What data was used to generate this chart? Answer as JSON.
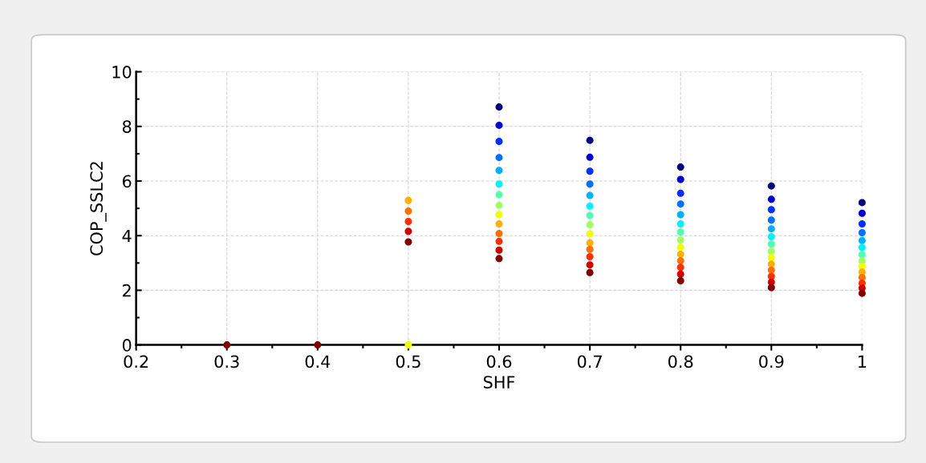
{
  "chart_data": {
    "type": "scatter",
    "xlabel": "SHF",
    "ylabel": "COP_SSLC2",
    "xlim": [
      0.2,
      1
    ],
    "ylim": [
      0,
      10
    ],
    "xticks": [
      0.2,
      0.3,
      0.4,
      0.5,
      0.6,
      0.7,
      0.8,
      0.9,
      1
    ],
    "yticks": [
      0,
      2,
      4,
      6,
      8,
      10
    ],
    "grid": true,
    "marker": "circle",
    "legend": false,
    "series": [
      {
        "x": [
          0.3,
          0.4,
          0.5,
          0.5,
          0.5,
          0.5,
          0.5,
          0.5
        ],
        "values": [
          0,
          0,
          0,
          5.29,
          4.9,
          4.52,
          4.16,
          3.77
        ],
        "colors": [
          "#800000",
          "#800000",
          "#f0ff00",
          "#ffb000",
          "#ff7000",
          "#ff3000",
          "#d00000",
          "#800000"
        ]
      },
      {
        "x": [
          0.6,
          0.6,
          0.6,
          0.6,
          0.6,
          0.6,
          0.6,
          0.6,
          0.6,
          0.6,
          0.6,
          0.6,
          0.6,
          0.6
        ],
        "values": [
          8.71,
          8.04,
          7.45,
          6.86,
          6.39,
          5.89,
          5.5,
          5.11,
          4.77,
          4.43,
          4.08,
          3.79,
          3.47,
          3.16
        ],
        "colors": [
          "#00007f",
          "#0000d0",
          "#0030ff",
          "#0070ff",
          "#00b0ff",
          "#00f0ff",
          "#50ffb0",
          "#a0ff60",
          "#f0ff00",
          "#ffb000",
          "#ff7000",
          "#ff3000",
          "#d00000",
          "#800000"
        ]
      },
      {
        "x": [
          0.7,
          0.7,
          0.7,
          0.7,
          0.7,
          0.7,
          0.7,
          0.7,
          0.7,
          0.7,
          0.7,
          0.7,
          0.7,
          0.7
        ],
        "values": [
          7.49,
          6.87,
          6.36,
          5.89,
          5.47,
          5.08,
          4.74,
          4.4,
          4.07,
          3.74,
          3.5,
          3.23,
          2.93,
          2.65
        ],
        "colors": [
          "#00007f",
          "#0000d0",
          "#0030ff",
          "#0070ff",
          "#00b0ff",
          "#00f0ff",
          "#50ffb0",
          "#a0ff60",
          "#f0ff00",
          "#ffb000",
          "#ff7000",
          "#ff3000",
          "#d00000",
          "#800000"
        ]
      },
      {
        "x": [
          0.8,
          0.8,
          0.8,
          0.8,
          0.8,
          0.8,
          0.8,
          0.8,
          0.8,
          0.8,
          0.8,
          0.8,
          0.8,
          0.8
        ],
        "values": [
          6.51,
          6.06,
          5.55,
          5.16,
          4.77,
          4.43,
          4.13,
          3.84,
          3.57,
          3.32,
          3.08,
          2.84,
          2.59,
          2.35
        ],
        "colors": [
          "#00007f",
          "#0000d0",
          "#0030ff",
          "#0070ff",
          "#00b0ff",
          "#00f0ff",
          "#50ffb0",
          "#a0ff60",
          "#f0ff00",
          "#ffb000",
          "#ff7000",
          "#ff3000",
          "#d00000",
          "#800000"
        ]
      },
      {
        "x": [
          0.9,
          0.9,
          0.9,
          0.9,
          0.9,
          0.9,
          0.9,
          0.9,
          0.9,
          0.9,
          0.9,
          0.9,
          0.9,
          0.9
        ],
        "values": [
          5.82,
          5.33,
          4.95,
          4.57,
          4.25,
          3.96,
          3.69,
          3.43,
          3.19,
          2.96,
          2.74,
          2.51,
          2.3,
          2.1
        ],
        "colors": [
          "#00007f",
          "#0000d0",
          "#0030ff",
          "#0070ff",
          "#00b0ff",
          "#00f0ff",
          "#50ffb0",
          "#a0ff60",
          "#f0ff00",
          "#ffb000",
          "#ff7000",
          "#ff3000",
          "#d00000",
          "#800000"
        ]
      },
      {
        "x": [
          1,
          1,
          1,
          1,
          1,
          1,
          1,
          1,
          1,
          1,
          1,
          1,
          1,
          1
        ],
        "values": [
          5.21,
          4.82,
          4.43,
          4.11,
          3.82,
          3.57,
          3.31,
          3.08,
          2.87,
          2.67,
          2.47,
          2.26,
          2.08,
          1.89
        ],
        "colors": [
          "#00007f",
          "#0000d0",
          "#0030ff",
          "#0070ff",
          "#00b0ff",
          "#00f0ff",
          "#50ffb0",
          "#a0ff60",
          "#f0ff00",
          "#ffb000",
          "#ff7000",
          "#ff3000",
          "#d00000",
          "#800000"
        ]
      }
    ]
  }
}
